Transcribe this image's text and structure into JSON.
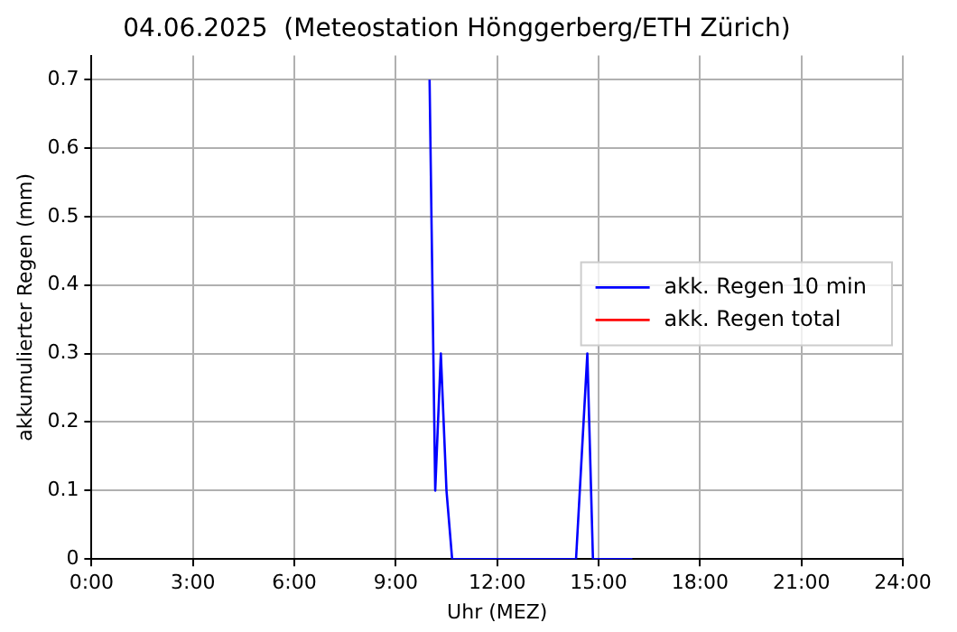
{
  "chart_data": {
    "type": "line",
    "title": "04.06.2025  (Meteostation Hönggerberg/ETH Zürich)",
    "xlabel": "Uhr (MEZ)",
    "ylabel": "akkumulierter Regen (mm)",
    "series": [
      {
        "name": "akk. Regen 10 min",
        "color": "#0000ff",
        "x": [
          10,
          10.167,
          10.333,
          10.5,
          10.667,
          14.333,
          14.667,
          14.833,
          16
        ],
        "values": [
          0.7,
          0.1,
          0.3,
          0.1,
          0,
          0,
          0.3,
          0,
          0
        ]
      },
      {
        "name": "akk. Regen total",
        "color": "#ff0000"
      }
    ],
    "xlim": [
      0,
      24
    ],
    "xticks": [
      {
        "value": 0,
        "label": "0:00"
      },
      {
        "value": 3,
        "label": "3:00"
      },
      {
        "value": 6,
        "label": "6:00"
      },
      {
        "value": 9,
        "label": "9:00"
      },
      {
        "value": 12,
        "label": "12:00"
      },
      {
        "value": 15,
        "label": "15:00"
      },
      {
        "value": 18,
        "label": "18:00"
      },
      {
        "value": 21,
        "label": "21:00"
      },
      {
        "value": 24,
        "label": "24:00"
      }
    ],
    "ylim": [
      0,
      0.735
    ],
    "yticks": [
      0,
      0.1,
      0.2,
      0.3,
      0.4,
      0.5,
      0.6,
      0.7
    ],
    "grid": true,
    "legend": "right",
    "marker": "none",
    "line_style": "solid"
  }
}
